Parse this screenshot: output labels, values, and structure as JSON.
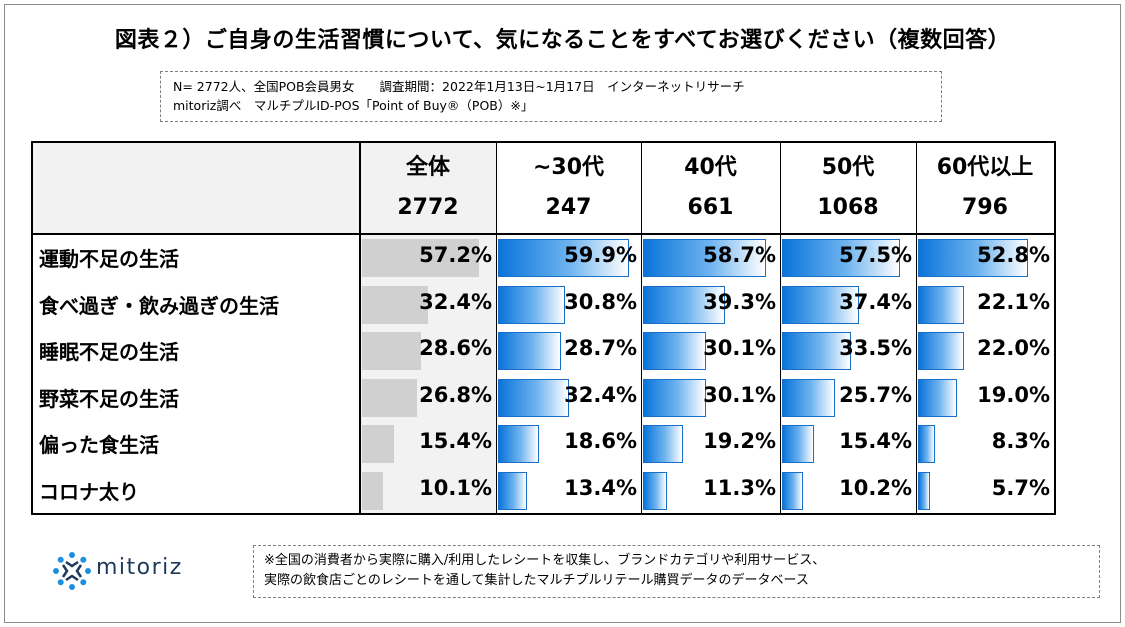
{
  "title": "図表２）ご自身の生活習慣について、気になることをすべてお選びください（複数回答）",
  "note": {
    "line1": "N= 2772人、全国POB会員男女　　調査期間：2022年1月13日~1月17日　インターネットリサーチ",
    "line2": "mitoriz調べ　マルチプルID-POS「Point of Buy®（POB）※」"
  },
  "chart_data": {
    "type": "table",
    "columns": [
      {
        "label": "全体",
        "n": "2772"
      },
      {
        "label": "~30代",
        "n": "247"
      },
      {
        "label": "40代",
        "n": "661"
      },
      {
        "label": "50代",
        "n": "1068"
      },
      {
        "label": "60代以上",
        "n": "796"
      }
    ],
    "rows": [
      {
        "label": "運動不足の生活",
        "values": [
          57.2,
          59.9,
          58.7,
          57.5,
          52.8
        ]
      },
      {
        "label": "食べ過ぎ・飲み過ぎの生活",
        "values": [
          32.4,
          30.8,
          39.3,
          37.4,
          22.1
        ]
      },
      {
        "label": "睡眠不足の生活",
        "values": [
          28.6,
          28.7,
          30.1,
          33.5,
          22.0
        ]
      },
      {
        "label": "野菜不足の生活",
        "values": [
          26.8,
          32.4,
          30.1,
          25.7,
          19.0
        ]
      },
      {
        "label": "偏った食生活",
        "values": [
          15.4,
          18.6,
          19.2,
          15.4,
          8.3
        ]
      },
      {
        "label": "コロナ太り",
        "values": [
          10.1,
          13.4,
          11.3,
          10.2,
          5.7
        ]
      }
    ],
    "unit": "%",
    "colors": {
      "total_bar": "#d0d0d0",
      "segment_bar": "#0a74da"
    }
  },
  "logo": {
    "text": "mitoriz",
    "icon": "mitoriz-logo-icon"
  },
  "footnote": {
    "line1": "※全国の消費者から実際に購入/利用したレシートを収集し、ブランドカテゴリや利用サービス、",
    "line2": "実際の飲食店ごとのレシートを通して集計したマルチプルリテール購買データのデータベース"
  }
}
